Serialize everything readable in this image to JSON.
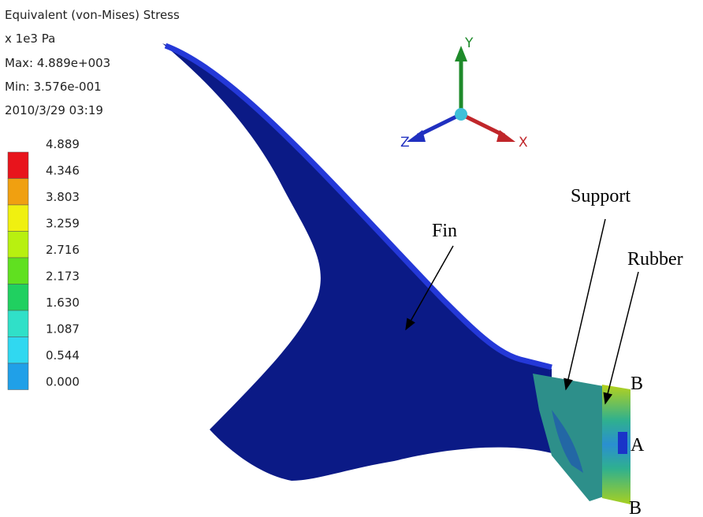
{
  "header": {
    "title": "Equivalent (von-Mises) Stress",
    "unit": "x 1e3 Pa",
    "max": "Max: 4.889e+003",
    "min": "Min: 3.576e-001",
    "timestamp": "2010/3/29 03:19"
  },
  "legend": {
    "labels": [
      "4.889",
      "4.346",
      "3.803",
      "3.259",
      "2.716",
      "2.173",
      "1.630",
      "1.087",
      "0.544",
      "0.000"
    ]
  },
  "triad": {
    "y": "Y",
    "z": "Z",
    "x": "X"
  },
  "annotations": {
    "fin": "Fin",
    "support": "Support",
    "rubber": "Rubber",
    "b_top": "B",
    "a": "A",
    "b_bottom": "B"
  }
}
